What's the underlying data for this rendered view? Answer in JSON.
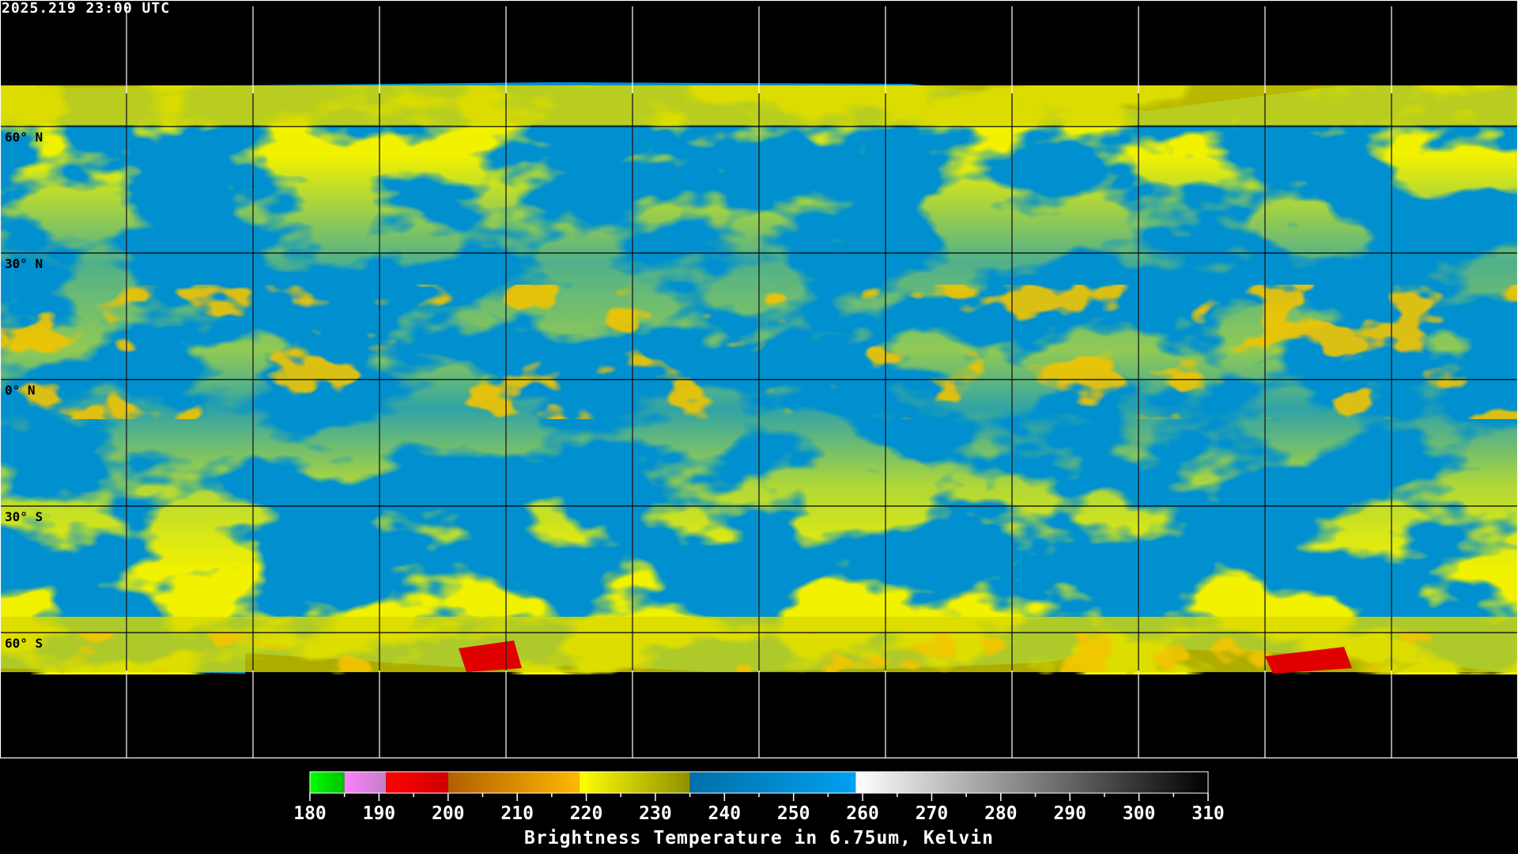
{
  "header": {
    "timestamp": "2025.219 23:00 UTC"
  },
  "map": {
    "projection": "equirectangular",
    "lat_labels": [
      "60° N",
      "30° N",
      "0° N",
      "30° S",
      "60° S"
    ],
    "grid_spacing_deg": 30,
    "colors": {
      "cold_cloud": "#e0e000",
      "moist": "#e8a000",
      "very_cold": "#e00000",
      "dry": "#0090d8",
      "background": "#000000"
    }
  },
  "colorbar": {
    "title": "Brightness Temperature in 6.75um, Kelvin",
    "range": [
      180,
      310
    ],
    "tick_labels": [
      "180",
      "190",
      "200",
      "210",
      "220",
      "230",
      "240",
      "250",
      "260",
      "270",
      "280",
      "290",
      "300",
      "310"
    ],
    "segments": [
      {
        "from": 180,
        "to": 185,
        "c1": "#00ff00",
        "c2": "#00c000"
      },
      {
        "from": 185,
        "to": 191,
        "c1": "#ff80ff",
        "c2": "#c080c8"
      },
      {
        "from": 191,
        "to": 200,
        "c1": "#ff0000",
        "c2": "#d00000"
      },
      {
        "from": 200,
        "to": 219,
        "c1": "#b06000",
        "c2": "#ffb800"
      },
      {
        "from": 219,
        "to": 235,
        "c1": "#ffff00",
        "c2": "#909000"
      },
      {
        "from": 235,
        "to": 259,
        "c1": "#0070a8",
        "c2": "#00a0f0"
      },
      {
        "from": 259,
        "to": 310,
        "c1": "#ffffff",
        "c2": "#000000"
      }
    ]
  }
}
